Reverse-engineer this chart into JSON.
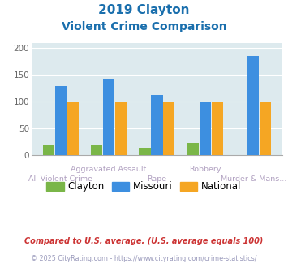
{
  "title_line1": "2019 Clayton",
  "title_line2": "Violent Crime Comparison",
  "categories": [
    "All Violent Crime",
    "Aggravated Assault",
    "Rape",
    "Robbery",
    "Murder & Mans..."
  ],
  "clayton": [
    20,
    20,
    14,
    23,
    0
  ],
  "missouri": [
    130,
    143,
    112,
    99,
    185
  ],
  "national": [
    100,
    100,
    100,
    100,
    100
  ],
  "color_clayton": "#7ab648",
  "color_missouri": "#3d8fe0",
  "color_national": "#f5a623",
  "ylim": [
    0,
    210
  ],
  "yticks": [
    0,
    50,
    100,
    150,
    200
  ],
  "background_color": "#ddeaee",
  "title_color": "#1a6fad",
  "xlabel_upper_color": "#b0a0c0",
  "xlabel_lower_color": "#b0a0c0",
  "footnote1": "Compared to U.S. average. (U.S. average equals 100)",
  "footnote2": "© 2025 CityRating.com - https://www.cityrating.com/crime-statistics/",
  "footnote1_color": "#cc3333",
  "footnote2_color": "#9999bb"
}
